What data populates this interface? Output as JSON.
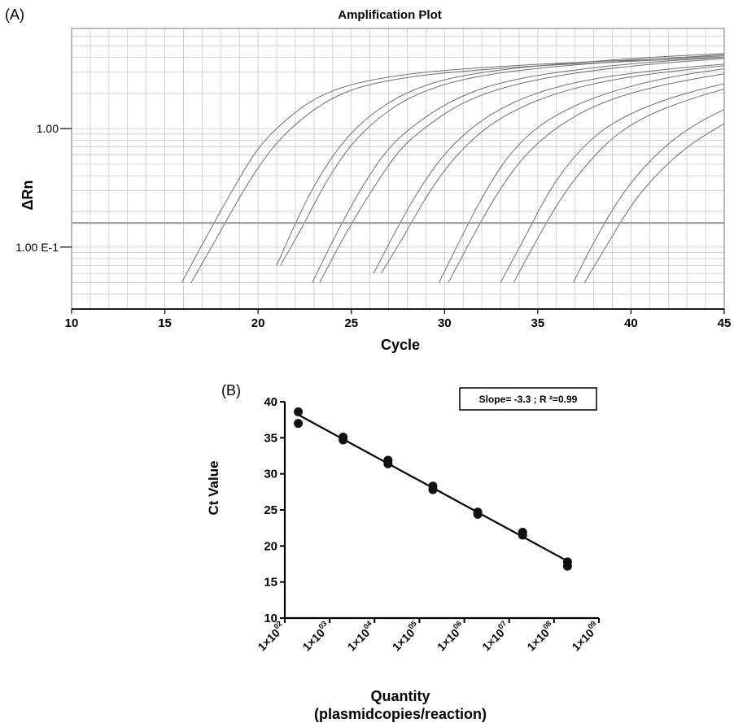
{
  "panelA": {
    "label": "(A)",
    "chart_data": {
      "type": "line",
      "title": "Amplification Plot",
      "xlabel": "Cycle",
      "ylabel": "ΔRn",
      "xlim": [
        10,
        45
      ],
      "y_scale": "log",
      "ylim": [
        0.03,
        7
      ],
      "grid": true,
      "x_ticks": [
        "10",
        "15",
        "20",
        "25",
        "30",
        "35",
        "40",
        "45"
      ],
      "y_ticks": [
        {
          "value": 1.0,
          "label": "1.00"
        },
        {
          "value": 0.1,
          "label": "1.00 E-1"
        }
      ],
      "threshold": 0.16,
      "series": [
        {
          "x": [
            15.9,
            17.2,
            18.6,
            20,
            21.5,
            23,
            25,
            28,
            31,
            35,
            40,
            45
          ],
          "y": [
            0.05,
            0.12,
            0.3,
            0.7,
            1.2,
            1.8,
            2.4,
            2.9,
            3.2,
            3.5,
            3.8,
            4.1
          ]
        },
        {
          "x": [
            16.4,
            17.8,
            19.2,
            20.6,
            22,
            23.6,
            25.5,
            28.5,
            31.5,
            35,
            40,
            45
          ],
          "y": [
            0.05,
            0.12,
            0.3,
            0.65,
            1.1,
            1.7,
            2.3,
            2.8,
            3.1,
            3.4,
            3.7,
            4.0
          ]
        },
        {
          "x": [
            21,
            22,
            23.2,
            24.6,
            26,
            27.6,
            29.5,
            32,
            35,
            38,
            41,
            45
          ],
          "y": [
            0.07,
            0.16,
            0.38,
            0.8,
            1.3,
            1.9,
            2.5,
            3.0,
            3.4,
            3.7,
            4.0,
            4.3
          ]
        },
        {
          "x": [
            21.2,
            22.4,
            23.6,
            25,
            26.5,
            28,
            30,
            32.5,
            35.5,
            38.5,
            41.5,
            45
          ],
          "y": [
            0.07,
            0.15,
            0.35,
            0.75,
            1.25,
            1.8,
            2.4,
            2.9,
            3.3,
            3.6,
            3.9,
            4.2
          ]
        },
        {
          "x": [
            22.9,
            24.3,
            25.6,
            27,
            28.6,
            30.3,
            32.3,
            34.8,
            37.5,
            40.5,
            45
          ],
          "y": [
            0.05,
            0.14,
            0.33,
            0.7,
            1.15,
            1.7,
            2.3,
            2.8,
            3.2,
            3.6,
            4.0
          ]
        },
        {
          "x": [
            23.3,
            24.8,
            26.2,
            27.6,
            29.2,
            30.9,
            33,
            35.5,
            38,
            41,
            45
          ],
          "y": [
            0.05,
            0.14,
            0.32,
            0.68,
            1.1,
            1.65,
            2.2,
            2.7,
            3.1,
            3.5,
            3.9
          ]
        },
        {
          "x": [
            26.2,
            27.4,
            28.7,
            30.1,
            31.7,
            33.4,
            35.3,
            37.7,
            40.5,
            43,
            45
          ],
          "y": [
            0.06,
            0.14,
            0.32,
            0.65,
            1.1,
            1.6,
            2.1,
            2.6,
            3.0,
            3.3,
            3.5
          ]
        },
        {
          "x": [
            26.6,
            27.9,
            29.2,
            30.7,
            32.3,
            34,
            36,
            38.5,
            41,
            43.5,
            45
          ],
          "y": [
            0.06,
            0.13,
            0.3,
            0.62,
            1.05,
            1.5,
            2.0,
            2.5,
            2.9,
            3.2,
            3.4
          ]
        },
        {
          "x": [
            29.7,
            31,
            32.2,
            33.5,
            35,
            36.7,
            38.5,
            40.5,
            42.5,
            45
          ],
          "y": [
            0.05,
            0.13,
            0.3,
            0.62,
            1.05,
            1.5,
            1.95,
            2.4,
            2.8,
            3.2
          ]
        },
        {
          "x": [
            30.2,
            31.6,
            32.9,
            34.3,
            35.9,
            37.6,
            39.5,
            41.5,
            43.5,
            45
          ],
          "y": [
            0.05,
            0.13,
            0.3,
            0.6,
            1.0,
            1.45,
            1.9,
            2.3,
            2.65,
            2.9
          ]
        },
        {
          "x": [
            33,
            34.3,
            35.5,
            36.8,
            38.3,
            40,
            41.8,
            43.5,
            45
          ],
          "y": [
            0.05,
            0.12,
            0.28,
            0.55,
            0.95,
            1.35,
            1.75,
            2.1,
            2.4
          ]
        },
        {
          "x": [
            33.7,
            35,
            36.3,
            37.7,
            39.2,
            40.9,
            42.6,
            44,
            45
          ],
          "y": [
            0.05,
            0.12,
            0.27,
            0.52,
            0.9,
            1.3,
            1.65,
            1.95,
            2.15
          ]
        },
        {
          "x": [
            36.9,
            38,
            39.3,
            40.7,
            42.2,
            43.7,
            45
          ],
          "y": [
            0.05,
            0.11,
            0.25,
            0.48,
            0.8,
            1.15,
            1.45
          ]
        },
        {
          "x": [
            37.5,
            38.8,
            40.1,
            41.6,
            43.1,
            44.3,
            45
          ],
          "y": [
            0.05,
            0.11,
            0.24,
            0.45,
            0.72,
            0.95,
            1.1
          ]
        }
      ]
    }
  },
  "panelB": {
    "label": "(B)",
    "annotation": "Slope=  -3.3 ; R ²=0.99",
    "chart_data": {
      "type": "scatter",
      "xlabel_line1": "Quantity",
      "xlabel_line2": "(plasmidcopies/reaction)",
      "ylabel": "Ct Value",
      "xlim": [
        2,
        9
      ],
      "ylim": [
        10,
        40
      ],
      "y_ticks": [
        "10",
        "15",
        "20",
        "25",
        "30",
        "35",
        "40"
      ],
      "x_ticks": [
        {
          "mantissa": "1×10",
          "exp": "02",
          "value": 2
        },
        {
          "mantissa": "1×10",
          "exp": "03",
          "value": 3
        },
        {
          "mantissa": "1×10",
          "exp": "04",
          "value": 4
        },
        {
          "mantissa": "1×10",
          "exp": "05",
          "value": 5
        },
        {
          "mantissa": "1×10",
          "exp": "06",
          "value": 6
        },
        {
          "mantissa": "1×10",
          "exp": "07",
          "value": 7
        },
        {
          "mantissa": "1×10",
          "exp": "08",
          "value": 8
        },
        {
          "mantissa": "1×10",
          "exp": "09",
          "value": 9
        }
      ],
      "points": [
        {
          "x": 2.3,
          "y": 38.6
        },
        {
          "x": 2.3,
          "y": 37.0
        },
        {
          "x": 3.3,
          "y": 35.1
        },
        {
          "x": 3.3,
          "y": 34.7
        },
        {
          "x": 4.3,
          "y": 31.9
        },
        {
          "x": 4.3,
          "y": 31.4
        },
        {
          "x": 5.3,
          "y": 28.3
        },
        {
          "x": 5.3,
          "y": 27.8
        },
        {
          "x": 6.3,
          "y": 24.7
        },
        {
          "x": 6.3,
          "y": 24.4
        },
        {
          "x": 7.3,
          "y": 21.9
        },
        {
          "x": 7.3,
          "y": 21.5
        },
        {
          "x": 8.3,
          "y": 17.8
        },
        {
          "x": 8.3,
          "y": 17.2
        }
      ],
      "fit": {
        "x": [
          2.3,
          8.3
        ],
        "y": [
          38.2,
          17.9
        ]
      }
    }
  }
}
